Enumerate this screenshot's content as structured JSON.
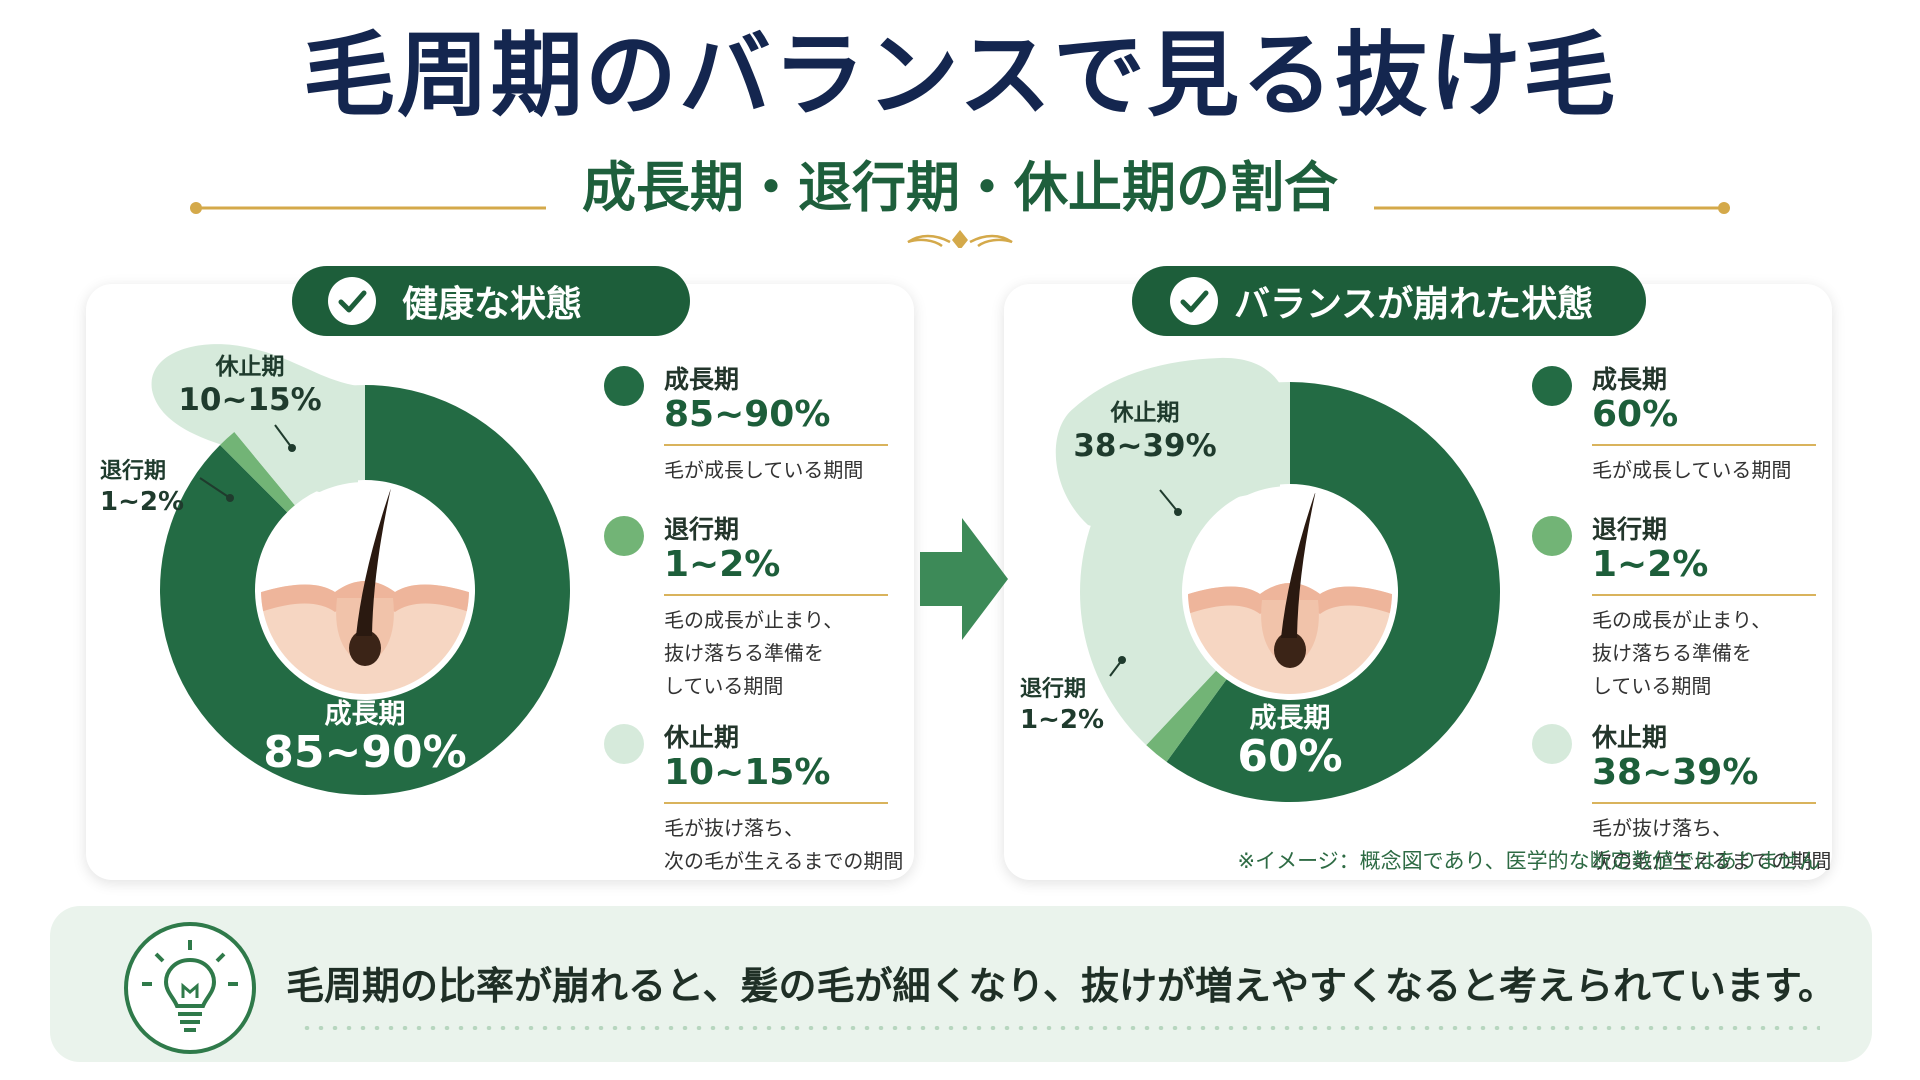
{
  "title": "毛周期のバランスで見る抜け毛",
  "subtitle": "成長期・退行期・休止期の割合",
  "colors": {
    "navy": "#14264f",
    "growth": "#236b44",
    "catagen": "#72b476",
    "telogen": "#d6eadb",
    "gold": "#d4a94a",
    "pill": "#1d5e3a"
  },
  "arrow_icon": "right-arrow-icon",
  "chart_data": [
    {
      "type": "pie",
      "title": "健康な状態",
      "categories": [
        "成長期",
        "退行期",
        "休止期"
      ],
      "values": [
        87.5,
        1.5,
        11
      ],
      "labels": [
        "85~90%",
        "1~2%",
        "10~15%"
      ],
      "center_label": {
        "name": "成長期",
        "value": "85~90%"
      },
      "callouts": [
        {
          "name": "休止期",
          "value": "10~15%"
        },
        {
          "name": "退行期",
          "value": "1~2%"
        }
      ],
      "legend": [
        {
          "name": "成長期",
          "value": "85~90%",
          "desc": "毛が成長している期間"
        },
        {
          "name": "退行期",
          "value": "1~2%",
          "desc": "毛の成長が止まり、\n抜け落ちる準備を\nしている期間"
        },
        {
          "name": "休止期",
          "value": "10~15%",
          "desc": "毛が抜け落ち、\n次の毛が生えるまでの期間"
        }
      ]
    },
    {
      "type": "pie",
      "title": "バランスが崩れた状態",
      "categories": [
        "成長期",
        "退行期",
        "休止期"
      ],
      "values": [
        60,
        2,
        38
      ],
      "labels": [
        "60%",
        "1~2%",
        "38~39%"
      ],
      "center_label": {
        "name": "成長期",
        "value": "60%"
      },
      "callouts": [
        {
          "name": "休止期",
          "value": "38~39%"
        },
        {
          "name": "退行期",
          "value": "1~2%"
        }
      ],
      "legend": [
        {
          "name": "成長期",
          "value": "60%",
          "desc": "毛が成長している期間"
        },
        {
          "name": "退行期",
          "value": "1~2%",
          "desc": "毛の成長が止まり、\n抜け落ちる準備を\nしている期間"
        },
        {
          "name": "休止期",
          "value": "38~39%",
          "desc": "毛が抜け落ち、\n次の毛が生えるまでの期間"
        }
      ]
    }
  ],
  "note": "※イメージ：概念図であり、医学的な断定数値ではありません",
  "bottom_message": "毛周期の比率が崩れると、髪の毛が細くなり、抜けが増えやすくなると考えられています。",
  "bulb_icon": "lightbulb-icon"
}
